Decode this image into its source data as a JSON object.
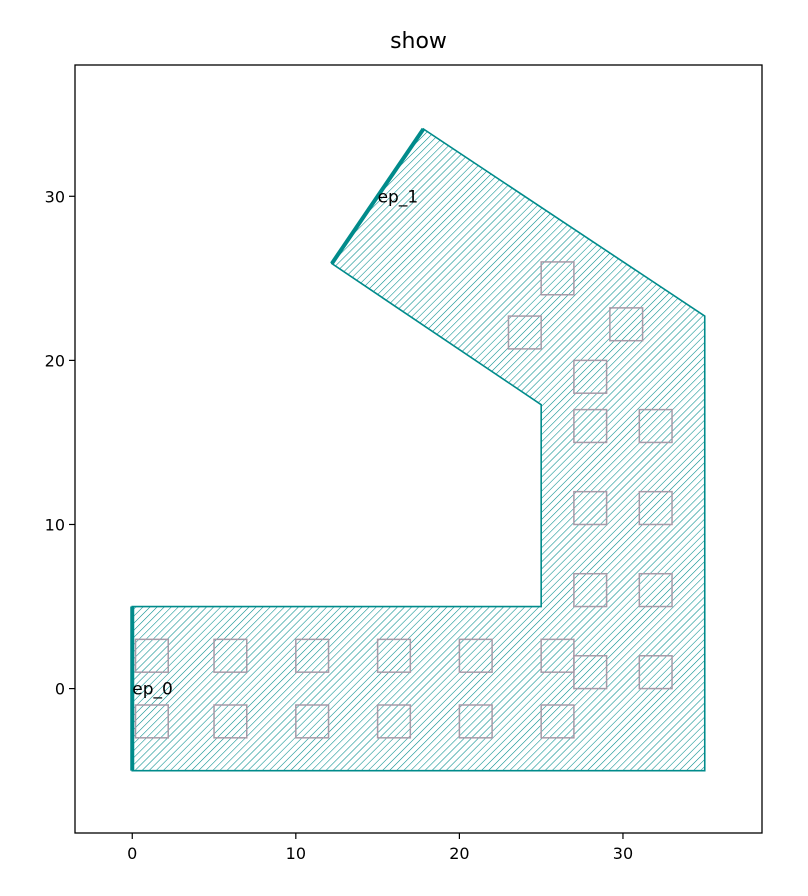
{
  "chart_data": {
    "type": "scatter",
    "title": "show",
    "xlabel": "",
    "ylabel": "",
    "xlim": [
      -3.5,
      38.5
    ],
    "ylim": [
      -8.8,
      38.0
    ],
    "x_ticks": [
      0,
      10,
      20,
      30
    ],
    "y_ticks": [
      0,
      10,
      20,
      30
    ],
    "x_tick_labels": [
      "0",
      "10",
      "20",
      "30"
    ],
    "y_tick_labels": [
      "0",
      "10",
      "20",
      "30"
    ],
    "grid": false,
    "colors": {
      "path": "#008b8b",
      "vias": "#a89aa8",
      "frame": "#000000",
      "background": "#ffffff"
    },
    "polygon": [
      [
        0,
        -5
      ],
      [
        35,
        -5
      ],
      [
        35,
        22.7
      ],
      [
        17.8,
        34.1
      ],
      [
        12.2,
        25.9
      ],
      [
        25,
        17.3
      ],
      [
        25,
        5
      ],
      [
        0,
        5
      ]
    ],
    "port_edges": [
      {
        "name": "ep_0",
        "from": [
          0,
          -5
        ],
        "to": [
          0,
          5
        ]
      },
      {
        "name": "ep_1",
        "from": [
          12.2,
          25.9
        ],
        "to": [
          17.8,
          34.1
        ]
      }
    ],
    "annotations": [
      {
        "text": "ep_0",
        "x": 0,
        "y": 0
      },
      {
        "text": "ep_1",
        "x": 15,
        "y": 30
      }
    ],
    "via_size": 2,
    "vias": [
      [
        1.2,
        2
      ],
      [
        6,
        2
      ],
      [
        11,
        2
      ],
      [
        16,
        2
      ],
      [
        21,
        2
      ],
      [
        26,
        2
      ],
      [
        1.2,
        -2
      ],
      [
        6,
        -2
      ],
      [
        11,
        -2
      ],
      [
        16,
        -2
      ],
      [
        21,
        -2
      ],
      [
        26,
        -2
      ],
      [
        28,
        1
      ],
      [
        32,
        1
      ],
      [
        28,
        6
      ],
      [
        32,
        6
      ],
      [
        28,
        11
      ],
      [
        32,
        11
      ],
      [
        28,
        16
      ],
      [
        32,
        16
      ],
      [
        28,
        19
      ],
      [
        30.2,
        22.2
      ],
      [
        24,
        21.7
      ],
      [
        26,
        25
      ]
    ]
  }
}
